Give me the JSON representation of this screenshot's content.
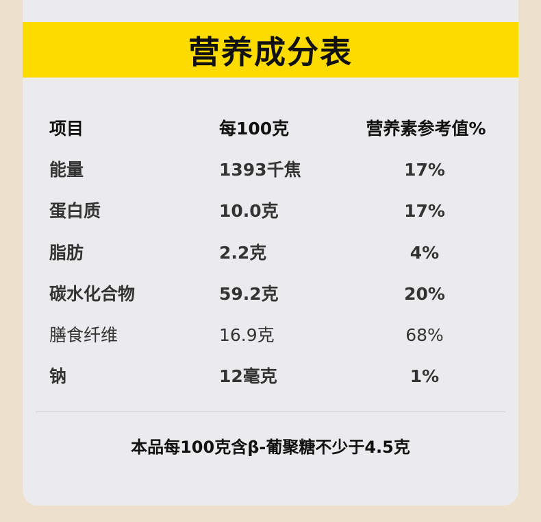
{
  "title": "营养成分表",
  "headers": [
    "项目",
    "每100克",
    "营养素参考值%"
  ],
  "rows": [
    {
      "item": "能量",
      "per100g": "1393千焦",
      "nrv": "17%"
    },
    {
      "item": "蛋白质",
      "per100g": "10.0克",
      "nrv": "17%"
    },
    {
      "item": "脂肪",
      "per100g": "2.2克",
      "nrv": "4%"
    },
    {
      "item": "碳水化合物",
      "per100g": "59.2克",
      "nrv": "20%"
    },
    {
      "item": "膳食纤维",
      "per100g": "16.9克",
      "nrv": "68%"
    },
    {
      "item": "钠",
      "per100g": "12毫克",
      "nrv": "1%"
    }
  ],
  "footnote": "本品每100克含β-葡聚糖不少于4.5克",
  "colors": {
    "banner": "#fcdc00",
    "background": "#ede0cc",
    "card": "#ebebee"
  }
}
